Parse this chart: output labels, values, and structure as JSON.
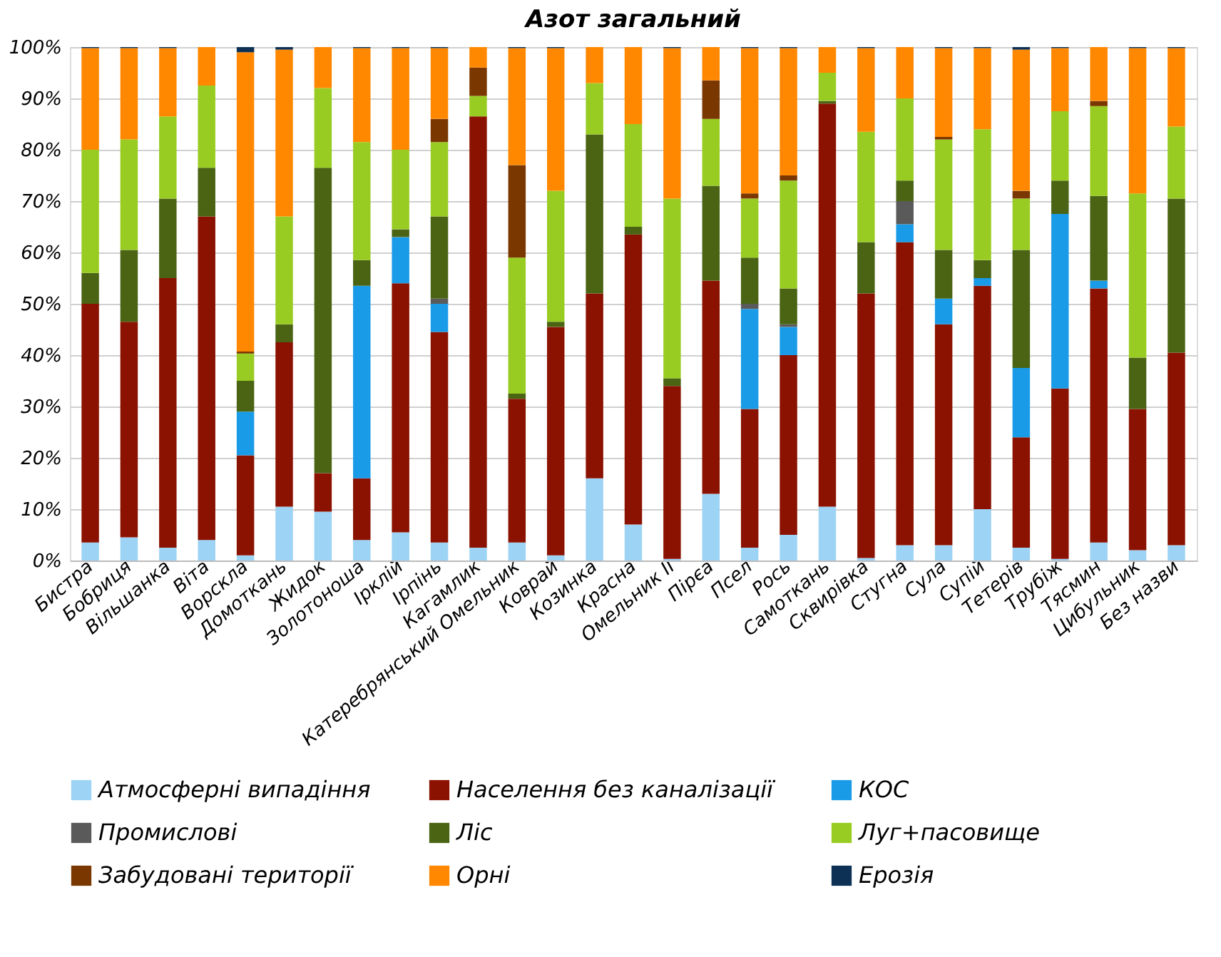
{
  "chart_data": {
    "type": "bar",
    "stacked": true,
    "title": "Азот загальний",
    "categories": [
      "Бистра",
      "Бобриця",
      "Вільшанка",
      "Віта",
      "Ворскла",
      "Домоткань",
      "Жидок",
      "Золотоноша",
      "Ірклій",
      "Ірпінь",
      "Кагамлик",
      "Катеребрянський Омельник",
      "Коврай",
      "Козинка",
      "Красна",
      "Омельник II",
      "Пірєа",
      "Псел",
      "Рось",
      "Самоткань",
      "Сквирівка",
      "Стугна",
      "Сула",
      "Супій",
      "Тетерів",
      "Трубіж",
      "Тясмин",
      "Цибульник",
      "Без назви"
    ],
    "ylim": [
      0,
      100
    ],
    "yticks": [
      {
        "value": 0,
        "label": "0%"
      },
      {
        "value": 10,
        "label": "10%"
      },
      {
        "value": 20,
        "label": "20%"
      },
      {
        "value": 30,
        "label": "30%"
      },
      {
        "value": 40,
        "label": "40%"
      },
      {
        "value": 50,
        "label": "50%"
      },
      {
        "value": 60,
        "label": "60%"
      },
      {
        "value": 70,
        "label": "70%"
      },
      {
        "value": 80,
        "label": "80%"
      },
      {
        "value": 90,
        "label": "90%"
      },
      {
        "value": 100,
        "label": "100%"
      }
    ],
    "grid": "y",
    "legend": "bottom",
    "series": [
      {
        "name": "Атмосферні випадіння",
        "color": "#9dd3f5",
        "values": [
          3.5,
          4.5,
          2.5,
          4,
          1,
          10.5,
          9.5,
          4,
          5.5,
          3.5,
          2.5,
          3.5,
          1,
          16,
          7,
          0.3,
          13,
          2.5,
          5,
          10.5,
          0.5,
          3,
          3,
          10,
          2.5,
          0.3,
          3.5,
          2,
          3
        ]
      },
      {
        "name": "Населення без каналізації",
        "color": "#8b1200",
        "values": [
          46.5,
          42,
          52.5,
          63,
          19.5,
          32,
          7.5,
          12,
          48.5,
          41,
          84,
          28,
          44.5,
          36,
          56.5,
          33.7,
          41.5,
          27,
          35,
          78.5,
          51.5,
          59,
          43,
          43.5,
          21.5,
          33.2,
          49.5,
          27.5,
          37.5
        ]
      },
      {
        "name": "КОС",
        "color": "#1a9be8",
        "values": [
          0,
          0,
          0,
          0,
          8.5,
          0,
          0,
          37.5,
          9,
          5.5,
          0,
          0,
          0,
          0,
          0,
          0,
          0,
          19.5,
          5.5,
          0,
          0,
          3.5,
          5,
          1.5,
          13.5,
          34,
          1.5,
          0,
          0
        ]
      },
      {
        "name": "Промислові",
        "color": "#5a5a5a",
        "values": [
          0,
          0,
          0,
          0,
          0,
          0,
          0,
          0,
          0,
          1,
          0,
          0,
          0,
          0,
          0,
          0,
          0,
          1,
          0.5,
          0,
          0,
          4.5,
          0,
          0,
          0,
          0,
          0,
          0,
          0
        ]
      },
      {
        "name": "Ліс",
        "color": "#4a6414",
        "values": [
          6,
          14,
          15.5,
          9.5,
          6,
          3.5,
          59.5,
          5,
          1.5,
          16,
          0,
          1,
          1,
          31,
          1.5,
          1.5,
          18.5,
          9,
          7,
          0.5,
          10,
          4,
          9.5,
          3.5,
          23,
          6.5,
          16.5,
          10,
          30
        ]
      },
      {
        "name": "Луг+пасовище",
        "color": "#99cc22",
        "values": [
          24,
          21.5,
          16,
          16,
          5.3,
          21,
          15.5,
          23,
          15.5,
          14.5,
          4,
          26.5,
          25.5,
          10,
          20,
          35,
          13,
          11.5,
          21,
          5.5,
          21.5,
          16,
          21.5,
          25.5,
          10,
          13.5,
          17.5,
          32,
          14
        ]
      },
      {
        "name": "Забудовані території",
        "color": "#7a3800",
        "values": [
          0,
          0,
          0,
          0,
          0.4,
          0,
          0,
          0,
          0,
          4.5,
          5.5,
          18,
          0,
          0,
          0,
          0,
          7.5,
          1,
          1,
          0,
          0,
          0,
          0.5,
          0,
          1.5,
          0,
          1,
          0,
          0
        ]
      },
      {
        "name": "Орні",
        "color": "#ff8800",
        "values": [
          19.8,
          17.8,
          13.3,
          7.5,
          58.3,
          32.5,
          8,
          18.3,
          19.8,
          13.8,
          4,
          22.8,
          27.8,
          7,
          15,
          29.3,
          6.5,
          28.3,
          24.8,
          5,
          16.3,
          10,
          17.3,
          15.8,
          27.5,
          12.3,
          10.5,
          28.3,
          15.3
        ]
      },
      {
        "name": "Ерозія",
        "color": "#0d3055",
        "values": [
          0.2,
          0.2,
          0.2,
          0,
          1,
          0.5,
          0,
          0.2,
          0.2,
          0.2,
          0,
          0.2,
          0.2,
          0,
          0,
          0.2,
          0,
          0.2,
          0.2,
          0,
          0.2,
          0,
          0.2,
          0.2,
          0.5,
          0.2,
          0,
          0.2,
          0.2
        ]
      }
    ]
  }
}
